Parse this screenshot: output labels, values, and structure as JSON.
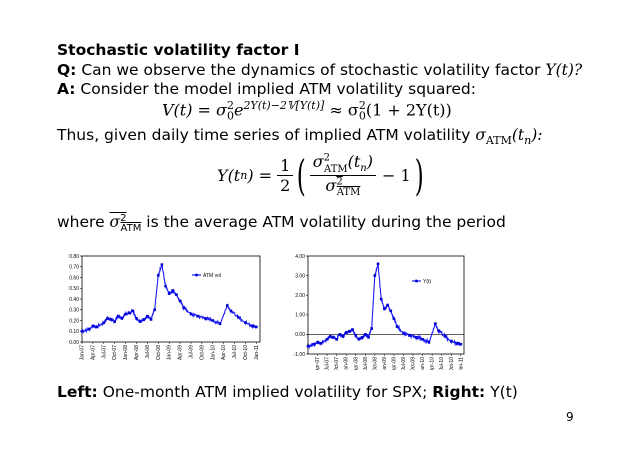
{
  "slide": {
    "title": "Stochastic volatility factor I",
    "q_label": "Q:",
    "q_text": "Can we observe the dynamics of stochastic volatility factor",
    "q_var": "Y(t)?",
    "a_label": "A:",
    "a_text": "Consider the model implied ATM volatility squared:",
    "thus_text": "Thus, given daily time series of implied ATM volatility",
    "where_text": "where",
    "avg_text": "is the average ATM volatility during the period",
    "caption_left_label": "Left:",
    "caption_left_text": "One-month ATM implied volatility for SPX;",
    "caption_right_label": "Right:",
    "caption_right_text": "Y(t)",
    "page_number": "9"
  },
  "equations": {
    "eq1_lhs": "V(t) = σ",
    "eq1_exp": "2Y(t)−2𝕍[Y(t)]",
    "eq1_rhs": "≈ σ",
    "eq1_tail": "(1 + 2Y(t))",
    "eq2_lhs": "Y(t",
    "eq2_half_num": "1",
    "eq2_half_den": "2",
    "eq2_minus": "− 1"
  },
  "chart_data": [
    {
      "type": "line",
      "legend": "ATM vol",
      "legend_position": "top-right",
      "ylim": [
        0.0,
        0.8
      ],
      "yticks": [
        "0.00",
        "0.10",
        "0.20",
        "0.30",
        "0.40",
        "0.50",
        "0.60",
        "0.70",
        "0.80"
      ],
      "xticks": [
        "Jan-07",
        "Apr-07",
        "Jul-07",
        "Oct-07",
        "Jan-08",
        "Apr-08",
        "Jul-08",
        "Oct-08",
        "Jan-09",
        "Apr-09",
        "Jul-09",
        "Oct-09",
        "Jan-10",
        "Apr-10",
        "Jul-10",
        "Oct-10",
        "Jan-11"
      ],
      "x": [
        "Jan-07",
        "Mar-07",
        "Apr-07",
        "May-07",
        "Jul-07",
        "Aug-07",
        "Sep-07",
        "Oct-07",
        "Nov-07",
        "Dec-07",
        "Jan-08",
        "Feb-08",
        "Mar-08",
        "Apr-08",
        "May-08",
        "Jun-08",
        "Jul-08",
        "Aug-08",
        "Sep-08",
        "Oct-08",
        "Nov-08",
        "Dec-08",
        "Jan-09",
        "Feb-09",
        "Mar-09",
        "Apr-09",
        "May-09",
        "Jul-09",
        "Sep-09",
        "Nov-09",
        "Jan-10",
        "Mar-10",
        "May-10",
        "Jun-10",
        "Aug-10",
        "Oct-10",
        "Dec-10",
        "Jan-11"
      ],
      "y": [
        0.1,
        0.12,
        0.15,
        0.14,
        0.18,
        0.22,
        0.21,
        0.19,
        0.24,
        0.22,
        0.26,
        0.27,
        0.29,
        0.22,
        0.19,
        0.21,
        0.24,
        0.21,
        0.3,
        0.62,
        0.72,
        0.52,
        0.45,
        0.48,
        0.44,
        0.38,
        0.32,
        0.26,
        0.24,
        0.22,
        0.2,
        0.17,
        0.34,
        0.29,
        0.23,
        0.18,
        0.15,
        0.14
      ]
    },
    {
      "type": "line",
      "legend": "Y(t)",
      "legend_position": "top-right",
      "ylim": [
        -1.0,
        4.0
      ],
      "yticks": [
        "-1.00",
        "0.00",
        "1.00",
        "2.00",
        "3.00",
        "4.00"
      ],
      "xticks": [
        "Apr-07",
        "Jul-07",
        "Oct-07",
        "Jan-08",
        "Apr-08",
        "Jul-08",
        "Oct-08",
        "Jan-09",
        "Apr-09",
        "Jul-09",
        "Oct-09",
        "Jan-10",
        "Apr-10",
        "Jul-10",
        "Oct-10",
        "Jan-11"
      ],
      "x": [
        "Jan-07",
        "Mar-07",
        "Apr-07",
        "May-07",
        "Jul-07",
        "Aug-07",
        "Sep-07",
        "Oct-07",
        "Nov-07",
        "Dec-07",
        "Jan-08",
        "Feb-08",
        "Mar-08",
        "Apr-08",
        "May-08",
        "Jun-08",
        "Jul-08",
        "Aug-08",
        "Sep-08",
        "Oct-08",
        "Nov-08",
        "Dec-08",
        "Jan-09",
        "Feb-09",
        "Mar-09",
        "Apr-09",
        "May-09",
        "Jul-09",
        "Sep-09",
        "Nov-09",
        "Jan-10",
        "Mar-10",
        "May-10",
        "Jun-10",
        "Aug-10",
        "Oct-10",
        "Dec-10",
        "Jan-11"
      ],
      "y": [
        -0.6,
        -0.5,
        -0.4,
        -0.45,
        -0.25,
        -0.1,
        -0.15,
        -0.25,
        0.0,
        -0.1,
        0.1,
        0.15,
        0.25,
        -0.05,
        -0.25,
        -0.15,
        0.0,
        -0.15,
        0.3,
        3.0,
        3.6,
        1.8,
        1.3,
        1.5,
        1.2,
        0.8,
        0.4,
        0.05,
        -0.05,
        -0.15,
        -0.25,
        -0.4,
        0.55,
        0.2,
        -0.1,
        -0.35,
        -0.45,
        -0.5
      ]
    }
  ]
}
